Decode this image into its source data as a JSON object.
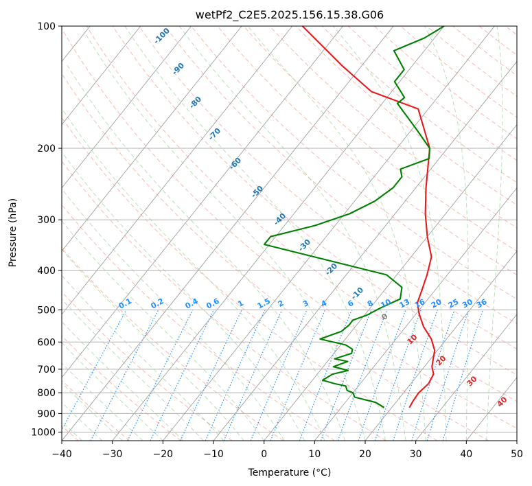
{
  "chart_data": {
    "type": "line",
    "title": "wetPf2_C2E5.2025.156.15.38.G06",
    "xlabel": "Temperature (°C)",
    "ylabel": "Pressure (hPa)",
    "xlim": [
      -40,
      50
    ],
    "ylim": [
      1050,
      100
    ],
    "y_scale": "log",
    "grid": true,
    "x_ticks": [
      -40,
      -30,
      -20,
      -10,
      0,
      10,
      20,
      30,
      40,
      50
    ],
    "y_ticks": [
      100,
      200,
      300,
      400,
      500,
      600,
      700,
      800,
      900,
      1000
    ],
    "series": [
      {
        "color": "#e41a1c",
        "points": [
          [
            23.5,
            870
          ],
          [
            23.2,
            840
          ],
          [
            23.0,
            800
          ],
          [
            23.5,
            760
          ],
          [
            23.0,
            720
          ],
          [
            21.5,
            690
          ],
          [
            20.5,
            660
          ],
          [
            19.5,
            630
          ],
          [
            17.0,
            590
          ],
          [
            13.5,
            550
          ],
          [
            10.5,
            510
          ],
          [
            8.5,
            480
          ],
          [
            7.5,
            450
          ],
          [
            6.0,
            410
          ],
          [
            4.0,
            370
          ],
          [
            0.0,
            330
          ],
          [
            -4.0,
            290
          ],
          [
            -8.0,
            250
          ],
          [
            -13.5,
            200
          ],
          [
            -22.0,
            160
          ],
          [
            -34.0,
            145
          ],
          [
            -44.0,
            125
          ],
          [
            -58.0,
            100
          ]
        ]
      },
      {
        "color": "#008000",
        "points": [
          [
            18.5,
            870
          ],
          [
            16.0,
            845
          ],
          [
            11.0,
            820
          ],
          [
            10.0,
            800
          ],
          [
            8.5,
            790
          ],
          [
            7.5,
            770
          ],
          [
            5.0,
            760
          ],
          [
            2.0,
            745
          ],
          [
            3.0,
            720
          ],
          [
            5.5,
            705
          ],
          [
            2.0,
            690
          ],
          [
            4.0,
            670
          ],
          [
            1.0,
            660
          ],
          [
            3.5,
            640
          ],
          [
            3.0,
            625
          ],
          [
            1.0,
            610
          ],
          [
            -5.0,
            590
          ],
          [
            -2.0,
            565
          ],
          [
            -1.5,
            545
          ],
          [
            -1.5,
            530
          ],
          [
            0.5,
            515
          ],
          [
            2.0,
            495
          ],
          [
            4.5,
            470
          ],
          [
            3.0,
            440
          ],
          [
            -2.0,
            410
          ],
          [
            -17.0,
            375
          ],
          [
            -31.0,
            345
          ],
          [
            -31.0,
            330
          ],
          [
            -24.0,
            310
          ],
          [
            -19.0,
            290
          ],
          [
            -16.0,
            270
          ],
          [
            -14.5,
            250
          ],
          [
            -14.5,
            235
          ],
          [
            -16.0,
            225
          ],
          [
            -12.0,
            212
          ],
          [
            -13.5,
            200
          ],
          [
            -19.0,
            180
          ],
          [
            -27.0,
            155
          ],
          [
            -26.5,
            150
          ],
          [
            -31.0,
            137
          ],
          [
            -31.0,
            128
          ],
          [
            -36.0,
            115
          ],
          [
            -32.0,
            107
          ],
          [
            -30.0,
            100
          ]
        ]
      }
    ],
    "dry_adiabat_labels": [
      "-100",
      "-90",
      "-80",
      "-70",
      "-60",
      "-50",
      "-40",
      "-30",
      "-20",
      "-10",
      "0",
      "10",
      "20",
      "30",
      "40"
    ],
    "mixing_ratio_labels": [
      "0.1",
      "0.2",
      "0.4",
      "0.6",
      "1",
      "1.5",
      "2",
      "3",
      "4",
      "6",
      "8",
      "10",
      "13",
      "16",
      "20",
      "25",
      "30",
      "36"
    ],
    "colors": {
      "temperature": "#e41a1c",
      "dewpoint": "#008000",
      "dry_adiabat": "#fa8072",
      "moist_adiabat": "#7ec87e",
      "mixing_ratio": "#1e90ff",
      "isotherm": "#7f7f7f",
      "label_cold": "#1f77b4",
      "label_warm": "#d62728",
      "zero_label": "#7f7f7f"
    }
  }
}
